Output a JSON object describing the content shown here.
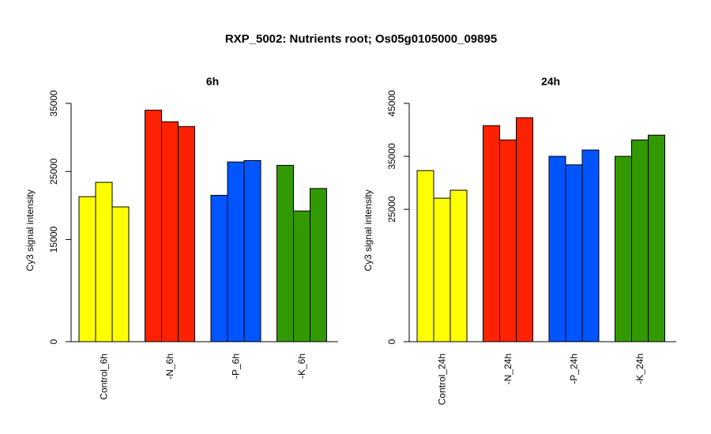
{
  "title": "RXP_5002: Nutrients root; Os05g0105000_09895",
  "chart_data": [
    {
      "type": "bar",
      "title": "6h",
      "ylabel": "Cy3 signal intensity",
      "xlabel": "",
      "ylim": [
        0,
        35000
      ],
      "yticks": [
        0,
        15000,
        25000,
        35000
      ],
      "ytick_labels": [
        "0",
        "15000",
        "25000",
        "35000"
      ],
      "categories": [
        "Control_6h",
        "-N_6h",
        "-P_6h",
        "-K_6h"
      ],
      "colors": [
        "#ffff00",
        "#ff2200",
        "#0055ff",
        "#339900"
      ],
      "values": [
        [
          21300,
          23400,
          19800
        ],
        [
          34000,
          32300,
          31600
        ],
        [
          21500,
          26400,
          26600
        ],
        [
          25900,
          19200,
          22500
        ]
      ]
    },
    {
      "type": "bar",
      "title": "24h",
      "ylabel": "Cy3 signal intensity",
      "xlabel": "",
      "ylim": [
        0,
        45000
      ],
      "yticks": [
        0,
        25000,
        35000,
        45000
      ],
      "ytick_labels": [
        "0",
        "25000",
        "35000",
        "45000"
      ],
      "categories": [
        "Control_24h",
        "-N_24h",
        "-P_24h",
        "-K_24h"
      ],
      "colors": [
        "#ffff00",
        "#ff2200",
        "#0055ff",
        "#339900"
      ],
      "values": [
        [
          32300,
          27100,
          28600
        ],
        [
          40800,
          38100,
          42300
        ],
        [
          35000,
          33400,
          36200
        ],
        [
          35000,
          38100,
          39000
        ]
      ]
    }
  ]
}
